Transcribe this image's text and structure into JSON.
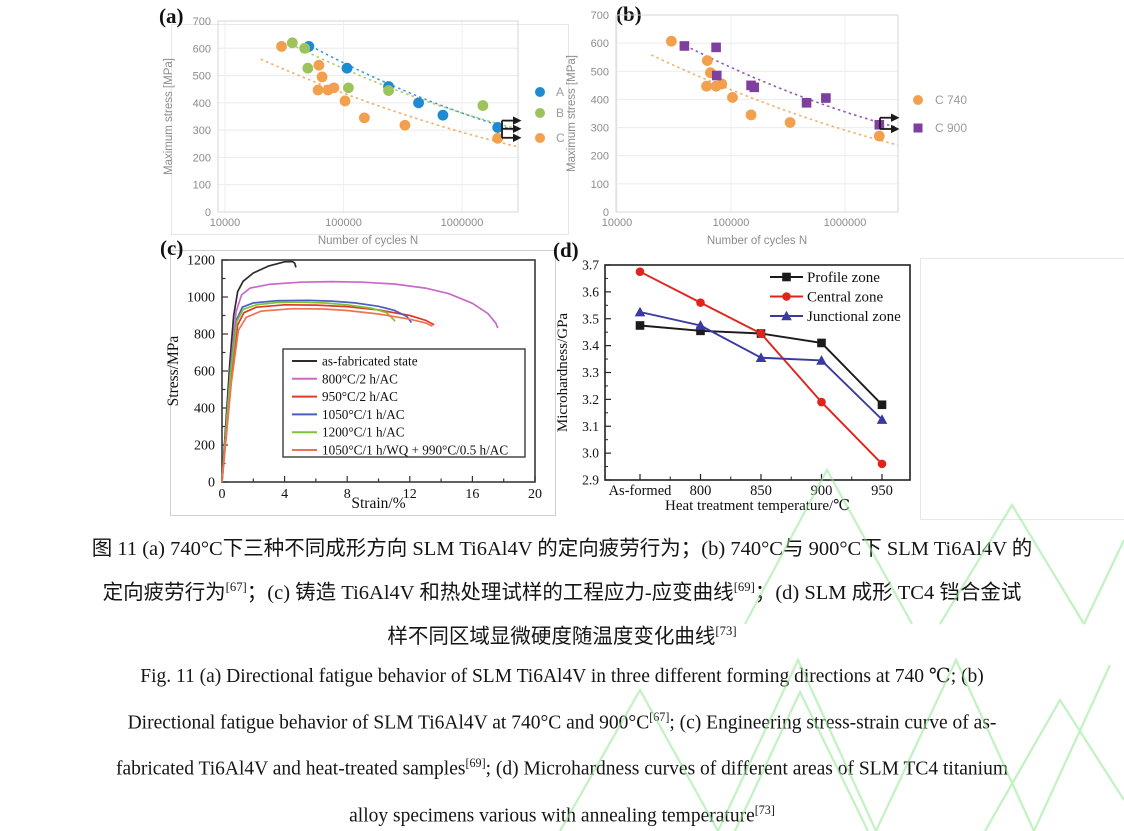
{
  "panels": {
    "a": {
      "label": "(a)"
    },
    "b": {
      "label": "(b)"
    },
    "c": {
      "label": "(c)"
    },
    "d": {
      "label": "(d)"
    }
  },
  "chart_data": [
    {
      "id": "a",
      "type": "scatter",
      "xscale": "log",
      "xlabel": "Number of cycles N",
      "ylabel": "Maximum stress [MPa]",
      "xlim": [
        9000,
        3000000
      ],
      "ylim": [
        0,
        700
      ],
      "x_ticks": [
        "10000",
        "100000",
        "1000000"
      ],
      "y_ticks": [
        0,
        100,
        200,
        300,
        400,
        500,
        600,
        700
      ],
      "grid": true,
      "legend_position": "right",
      "series": [
        {
          "name": "A",
          "color": "#1e8bd1",
          "marker": "circle",
          "points": [
            [
              51000,
              607
            ],
            [
              107000,
              527
            ],
            [
              240000,
              460
            ],
            [
              430000,
              400
            ],
            [
              690000,
              355
            ],
            [
              2000000,
              310
            ]
          ]
        },
        {
          "name": "B",
          "color": "#9dc35d",
          "marker": "circle",
          "points": [
            [
              37000,
              620
            ],
            [
              47000,
              600
            ],
            [
              50000,
              527
            ],
            [
              110000,
              455
            ],
            [
              240000,
              445
            ],
            [
              1500000,
              390
            ]
          ]
        },
        {
          "name": "C",
          "color": "#f2a04e",
          "marker": "circle",
          "points": [
            [
              30000,
              607
            ],
            [
              62000,
              538
            ],
            [
              66000,
              495
            ],
            [
              61000,
              447
            ],
            [
              74000,
              447
            ],
            [
              83000,
              455
            ],
            [
              103000,
              407
            ],
            [
              150000,
              345
            ],
            [
              330000,
              318
            ],
            [
              2000000,
              270
            ]
          ]
        }
      ],
      "trendlines": [
        {
          "series": "A",
          "color": "#1e8bd1",
          "from": [
            48000,
            618
          ],
          "to": [
            2900000,
            298
          ]
        },
        {
          "series": "B",
          "color": "#9dc35d",
          "from": [
            36000,
            615
          ],
          "to": [
            2900000,
            305
          ]
        },
        {
          "series": "C",
          "color": "#f2a04e",
          "from": [
            20000,
            560
          ],
          "to": [
            2900000,
            240
          ]
        }
      ],
      "runout_arrows": [
        335,
        305,
        272
      ]
    },
    {
      "id": "b",
      "type": "scatter",
      "xscale": "log",
      "xlabel": "Number of cycles N",
      "ylabel": "Maximum stress [MPa]",
      "xlim": [
        9000,
        3000000
      ],
      "ylim": [
        0,
        700
      ],
      "x_ticks": [
        "10000",
        "100000",
        "1000000"
      ],
      "y_ticks": [
        0,
        100,
        200,
        300,
        400,
        500,
        600,
        700
      ],
      "grid": true,
      "legend_position": "right",
      "series": [
        {
          "name": "C 740",
          "color": "#f2a04e",
          "marker": "circle",
          "points": [
            [
              30000,
              607
            ],
            [
              62000,
              538
            ],
            [
              66000,
              495
            ],
            [
              61000,
              447
            ],
            [
              74000,
              447
            ],
            [
              83000,
              455
            ],
            [
              103000,
              407
            ],
            [
              150000,
              345
            ],
            [
              330000,
              318
            ],
            [
              2000000,
              270
            ]
          ]
        },
        {
          "name": "C 900",
          "color": "#7e3f9e",
          "marker": "square",
          "points": [
            [
              39000,
              590
            ],
            [
              74000,
              585
            ],
            [
              75000,
              485
            ],
            [
              150000,
              450
            ],
            [
              160000,
              443
            ],
            [
              460000,
              388
            ],
            [
              680000,
              405
            ],
            [
              2000000,
              310
            ]
          ]
        }
      ],
      "trendlines": [
        {
          "series": "C 900",
          "color": "#7e3f9e",
          "from": [
            36000,
            600
          ],
          "to": [
            2900000,
            300
          ]
        },
        {
          "series": "C 740",
          "color": "#f2a04e",
          "from": [
            20000,
            558
          ],
          "to": [
            2900000,
            238
          ]
        }
      ],
      "runout_arrows": [
        335,
        295
      ]
    },
    {
      "id": "c",
      "type": "line",
      "xlabel": "Strain/%",
      "ylabel": "Stress/MPa",
      "xlim": [
        0,
        20
      ],
      "ylim": [
        0,
        1200
      ],
      "x_ticks": [
        0,
        4,
        8,
        12,
        16,
        20
      ],
      "y_ticks": [
        0,
        200,
        400,
        600,
        800,
        1000,
        1200
      ],
      "grid": false,
      "legend_position": "inside-box",
      "series": [
        {
          "name": "as-fabricated state",
          "color": "#2d2d2d",
          "points": [
            [
              0,
              0
            ],
            [
              0.5,
              640
            ],
            [
              0.75,
              900
            ],
            [
              1.0,
              1030
            ],
            [
              1.35,
              1085
            ],
            [
              2.0,
              1130
            ],
            [
              3.0,
              1168
            ],
            [
              4.0,
              1190
            ],
            [
              4.5,
              1192
            ],
            [
              4.65,
              1182
            ],
            [
              4.72,
              1160
            ]
          ]
        },
        {
          "name": "800°C/2 h/AC",
          "color": "#c66bc6",
          "points": [
            [
              0,
              0
            ],
            [
              0.55,
              620
            ],
            [
              0.9,
              920
            ],
            [
              1.25,
              1012
            ],
            [
              1.8,
              1048
            ],
            [
              3.0,
              1068
            ],
            [
              5.0,
              1080
            ],
            [
              7.0,
              1083
            ],
            [
              9.0,
              1080
            ],
            [
              11.0,
              1070
            ],
            [
              13.0,
              1048
            ],
            [
              14.5,
              1018
            ],
            [
              16.0,
              966
            ],
            [
              17.0,
              910
            ],
            [
              17.5,
              858
            ],
            [
              17.62,
              832
            ]
          ]
        },
        {
          "name": "950°C/2 h/AC",
          "color": "#e03a2c",
          "points": [
            [
              0,
              0
            ],
            [
              0.6,
              570
            ],
            [
              1.0,
              850
            ],
            [
              1.4,
              915
            ],
            [
              2.2,
              945
            ],
            [
              4.0,
              958
            ],
            [
              6.0,
              956
            ],
            [
              8.0,
              948
            ],
            [
              10.0,
              930
            ],
            [
              12.0,
              900
            ],
            [
              13.0,
              874
            ],
            [
              13.55,
              850
            ]
          ]
        },
        {
          "name": "1050°C/1 h/AC",
          "color": "#4a5ec4",
          "points": [
            [
              0,
              0
            ],
            [
              0.55,
              600
            ],
            [
              0.95,
              880
            ],
            [
              1.3,
              945
            ],
            [
              2.0,
              968
            ],
            [
              3.5,
              980
            ],
            [
              5.5,
              982
            ],
            [
              7.0,
              978
            ],
            [
              8.5,
              968
            ],
            [
              10.0,
              950
            ],
            [
              11.0,
              928
            ],
            [
              11.8,
              895
            ],
            [
              12.1,
              862
            ]
          ]
        },
        {
          "name": "1200°C/1 h/AC",
          "color": "#7cc433",
          "points": [
            [
              0,
              0
            ],
            [
              0.55,
              590
            ],
            [
              0.95,
              868
            ],
            [
              1.35,
              933
            ],
            [
              2.2,
              958
            ],
            [
              3.5,
              970
            ],
            [
              5.0,
              972
            ],
            [
              6.5,
              968
            ],
            [
              8.0,
              958
            ],
            [
              9.5,
              940
            ],
            [
              10.5,
              916
            ],
            [
              10.95,
              880
            ],
            [
              11.05,
              868
            ]
          ]
        },
        {
          "name": "1050°C/1 h/WQ + 990°C/0.5 h/AC",
          "color": "#ee7351",
          "points": [
            [
              0,
              0
            ],
            [
              0.6,
              540
            ],
            [
              1.05,
              820
            ],
            [
              1.55,
              890
            ],
            [
              2.5,
              924
            ],
            [
              4.5,
              937
            ],
            [
              6.5,
              935
            ],
            [
              8.0,
              927
            ],
            [
              10.0,
              908
            ],
            [
              12.0,
              880
            ],
            [
              13.0,
              860
            ],
            [
              13.45,
              842
            ]
          ]
        }
      ]
    },
    {
      "id": "d",
      "type": "line",
      "xlabel": "Heat treatment temperature/℃",
      "ylabel": "Microhardness/GPa",
      "categories": [
        "As-formed",
        "800",
        "850",
        "900",
        "950"
      ],
      "ylim": [
        2.9,
        3.7
      ],
      "y_ticks": [
        2.9,
        3.0,
        3.1,
        3.2,
        3.3,
        3.4,
        3.5,
        3.6,
        3.7
      ],
      "grid": false,
      "legend_position": "top-right",
      "series": [
        {
          "name": "Profile zone",
          "color": "#1b1b1b",
          "marker": "square",
          "values": [
            3.475,
            3.455,
            3.445,
            3.41,
            3.18
          ]
        },
        {
          "name": "Central zone",
          "color": "#e0241c",
          "marker": "circle",
          "values": [
            3.675,
            3.56,
            3.445,
            3.19,
            2.96
          ]
        },
        {
          "name": "Junctional zone",
          "color": "#3a3aa0",
          "marker": "triangle",
          "values": [
            3.525,
            3.475,
            3.355,
            3.345,
            3.125
          ]
        }
      ]
    }
  ],
  "caption": {
    "zh_lines": [
      [
        {
          "t": "图 11 (a) 740°C下三种不同成形方向 SLM Ti6Al4V 的定向疲劳行为；(b) 740°C与 900°C下 SLM Ti6Al4V 的"
        }
      ],
      [
        {
          "t": "定向疲劳行为"
        },
        {
          "s": "[67]"
        },
        {
          "t": "；(c) 铸造 Ti6Al4V 和热处理试样的工程应力-应变曲线"
        },
        {
          "s": "[69]"
        },
        {
          "t": "；(d) SLM 成形 TC4 铛合金试"
        }
      ],
      [
        {
          "t": "样不同区域显微硬度随温度变化曲线"
        },
        {
          "s": "[73]"
        }
      ]
    ],
    "en_lines": [
      [
        {
          "t": "Fig. 11 (a) Directional fatigue behavior of SLM Ti6Al4V in three different forming directions at 740 ℃; (b)"
        }
      ],
      [
        {
          "t": "Directional fatigue behavior of SLM Ti6Al4V at 740°C and 900°C"
        },
        {
          "s": "[67]"
        },
        {
          "t": "; (c) Engineering stress-strain curve of as-"
        }
      ],
      [
        {
          "t": "fabricated Ti6Al4V and heat-treated samples"
        },
        {
          "s": "[69]"
        },
        {
          "t": "; (d) Microhardness curves of different areas of SLM TC4 titanium"
        }
      ],
      [
        {
          "t": "alloy specimens various with annealing temperature"
        },
        {
          "s": "[73]"
        }
      ]
    ]
  },
  "colors": {
    "axis_text_gray": "#8c8c8c",
    "legend_text_gray": "#9b9b9b",
    "gridline": "#ebebeb",
    "excel_frame": "#d5d5d5",
    "watermark_green": "#92e692",
    "arrow_black": "#1a1a1a"
  }
}
